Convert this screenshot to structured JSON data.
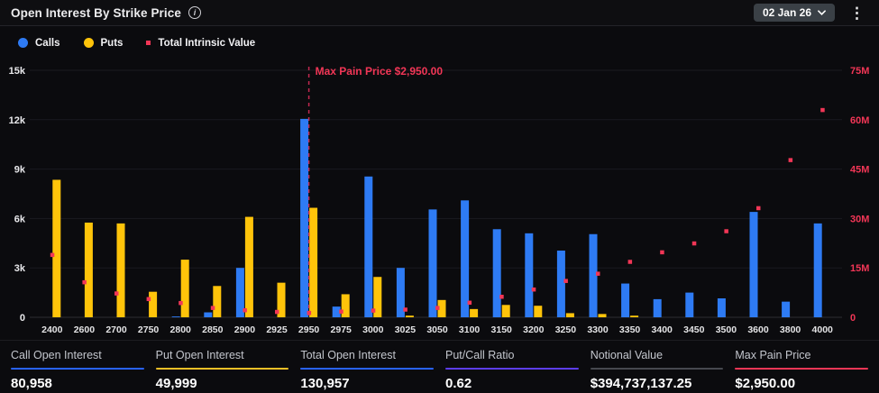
{
  "header": {
    "title": "Open Interest By Strike Price",
    "date_selector": "02 Jan 26"
  },
  "legend": [
    {
      "label": "Calls",
      "color": "#2e7bf4",
      "shape": "circle"
    },
    {
      "label": "Puts",
      "color": "#ffc40a",
      "shape": "circle"
    },
    {
      "label": "Total Intrinsic Value",
      "color": "#f23656",
      "shape": "square"
    }
  ],
  "chart_data": {
    "type": "bar",
    "title": "Open Interest By Strike Price",
    "categories": [
      "2400",
      "2600",
      "2700",
      "2750",
      "2800",
      "2850",
      "2900",
      "2925",
      "2950",
      "2975",
      "3000",
      "3025",
      "3050",
      "3100",
      "3150",
      "3200",
      "3250",
      "3300",
      "3350",
      "3400",
      "3450",
      "3500",
      "3600",
      "3800",
      "4000"
    ],
    "series": [
      {
        "name": "Calls",
        "type": "bar",
        "axis": "left",
        "color": "#2e7bf4",
        "values": [
          0,
          0,
          0,
          0,
          50,
          300,
          3000,
          0,
          12050,
          650,
          8550,
          3000,
          6550,
          7100,
          5350,
          5100,
          4050,
          5050,
          2050,
          1100,
          1500,
          1150,
          6400,
          950,
          5700
        ]
      },
      {
        "name": "Puts",
        "type": "bar",
        "axis": "left",
        "color": "#ffc40a",
        "values": [
          8350,
          5750,
          5700,
          1550,
          3500,
          1900,
          6100,
          2100,
          6650,
          1400,
          2450,
          100,
          1050,
          500,
          750,
          700,
          250,
          200,
          100,
          0,
          0,
          0,
          0,
          0,
          0
        ]
      },
      {
        "name": "Total Intrinsic Value",
        "type": "scatter",
        "axis": "right",
        "color": "#f23656",
        "values_millions": [
          19,
          10.7,
          7.3,
          5.6,
          4.4,
          2.9,
          2.2,
          1.7,
          1.4,
          1.8,
          2.1,
          2.4,
          2.9,
          4.5,
          6.3,
          8.5,
          11.1,
          13.3,
          16.9,
          19.8,
          22.5,
          26.2,
          33.2,
          47.8,
          63
        ]
      }
    ],
    "left_axis": {
      "ticks": [
        "0",
        "3k",
        "6k",
        "9k",
        "12k",
        "15k"
      ],
      "max": 15000,
      "color": "#e9e9ec"
    },
    "right_axis": {
      "ticks": [
        "0",
        "15M",
        "30M",
        "45M",
        "60M",
        "75M"
      ],
      "max": 75,
      "color": "#f23656"
    },
    "max_pain": {
      "label": "Max Pain Price $2,950.00",
      "strike": "2950",
      "line_color": "#c22850",
      "label_color": "#f23656"
    },
    "grid": "horizontal",
    "legend_position": "top-left"
  },
  "stats": [
    {
      "label": "Call Open Interest",
      "value": "80,958",
      "accent": "#2962ff"
    },
    {
      "label": "Put Open Interest",
      "value": "49,999",
      "accent": "#f2c027"
    },
    {
      "label": "Total Open Interest",
      "value": "130,957",
      "accent": "#2962ff"
    },
    {
      "label": "Put/Call Ratio",
      "value": "0.62",
      "accent": "#5c3df0"
    },
    {
      "label": "Notional Value",
      "value": "$394,737,137.25",
      "accent": "#46484f"
    },
    {
      "label": "Max Pain Price",
      "value": "$2,950.00",
      "accent": "#f23656"
    }
  ]
}
